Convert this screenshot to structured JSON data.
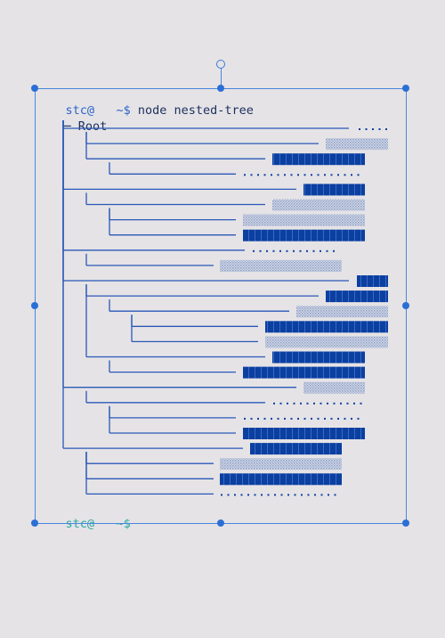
{
  "terminal": {
    "prompt_user": "stc",
    "prompt_at": "@",
    "prompt_host": "   ",
    "prompt_path": "~",
    "prompt_symbol": "$",
    "command": " node nested-tree",
    "root_prefix": "─",
    "root_label": "Root"
  },
  "colors": {
    "background": "#e5e3e6",
    "tree_line": "#2b58b8",
    "bar_solid": "#0b3fa0",
    "bar_dotted": "#a9b7d6",
    "selection": "#4a86de"
  },
  "tree": [
    {
      "depth": 1,
      "bar": "dots"
    },
    {
      "depth": 2,
      "bar": "light"
    },
    {
      "depth": 2,
      "bar": "solid"
    },
    {
      "depth": 3,
      "bar": "dots"
    },
    {
      "depth": 1,
      "bar": "solid"
    },
    {
      "depth": 2,
      "bar": "light"
    },
    {
      "depth": 3,
      "bar": "light"
    },
    {
      "depth": 3,
      "bar": "solid"
    },
    {
      "depth": 1,
      "bar": "dots"
    },
    {
      "depth": 2,
      "bar": "light"
    },
    {
      "depth": 1,
      "bar": "solid"
    },
    {
      "depth": 2,
      "bar": "solid"
    },
    {
      "depth": 3,
      "bar": "light"
    },
    {
      "depth": 4,
      "bar": "solid"
    },
    {
      "depth": 4,
      "bar": "light"
    },
    {
      "depth": 2,
      "bar": "solid"
    },
    {
      "depth": 3,
      "bar": "solid"
    },
    {
      "depth": 1,
      "bar": "light"
    },
    {
      "depth": 2,
      "bar": "dots"
    },
    {
      "depth": 3,
      "bar": "dots"
    },
    {
      "depth": 3,
      "bar": "solid"
    },
    {
      "depth": 1,
      "bar": "solid"
    },
    {
      "depth": 2,
      "bar": "light"
    },
    {
      "depth": 2,
      "bar": "solid"
    },
    {
      "depth": 2,
      "bar": "dots"
    }
  ]
}
